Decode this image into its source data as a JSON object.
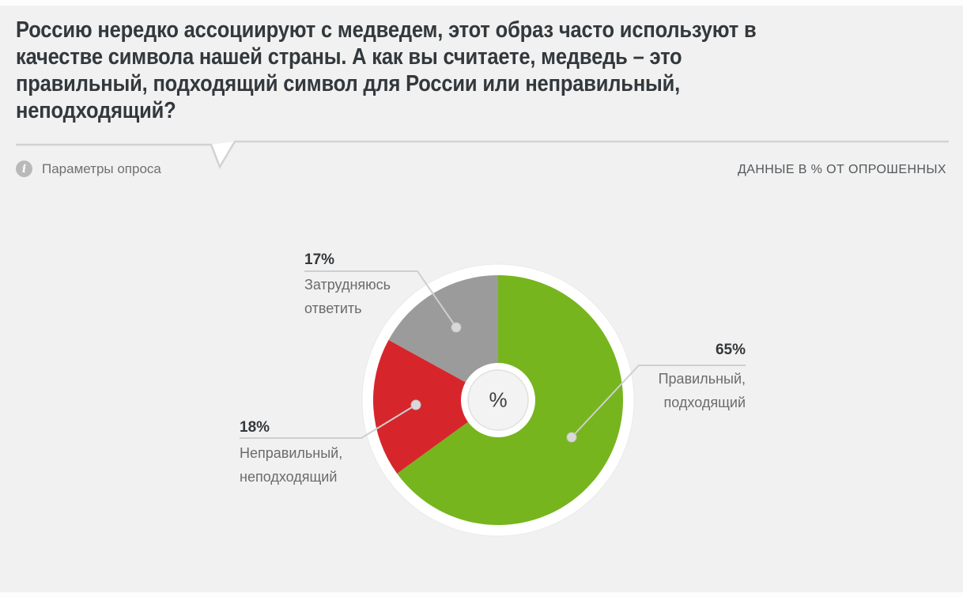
{
  "header": {
    "title_lines": [
      "Россию нередко ассоциируют с медведем, этот образ часто используют в",
      "качестве символа нашей страны. А как вы считаете, медведь – это",
      "правильный, подходящий символ для России или неправильный,",
      "неподходящий?"
    ],
    "params_button": "Параметры опроса",
    "info_icon": "i",
    "data_note": "ДАННЫЕ В % ОТ ОПРОШЕННЫХ"
  },
  "chart_data": {
    "type": "pie",
    "donut": true,
    "title": "Россию нередко ассоциируют с медведем, этот образ часто используют в качестве символа нашей страны. А как вы считаете, медведь – это правильный, подходящий символ для России или неправильный, неподходящий?",
    "unit": "% от опрошенных",
    "start_angle": "top",
    "direction": "clockwise",
    "legend_position": "callout-labels",
    "categories": [
      "Правильный, подходящий",
      "Неправильный, неподходящий",
      "Затрудняюсь ответить"
    ],
    "values": [
      65,
      18,
      17
    ],
    "colors": [
      "#76b51e",
      "#d6262c",
      "#9b9b9b"
    ],
    "center_label": "%",
    "labels": [
      {
        "pct": "65%",
        "line1": "Правильный,",
        "line2": "подходящий"
      },
      {
        "pct": "18%",
        "line1": "Неправильный,",
        "line2": "неподходящий"
      },
      {
        "pct": "17%",
        "line1": "Затрудняюсь",
        "line2": "ответить"
      }
    ]
  }
}
